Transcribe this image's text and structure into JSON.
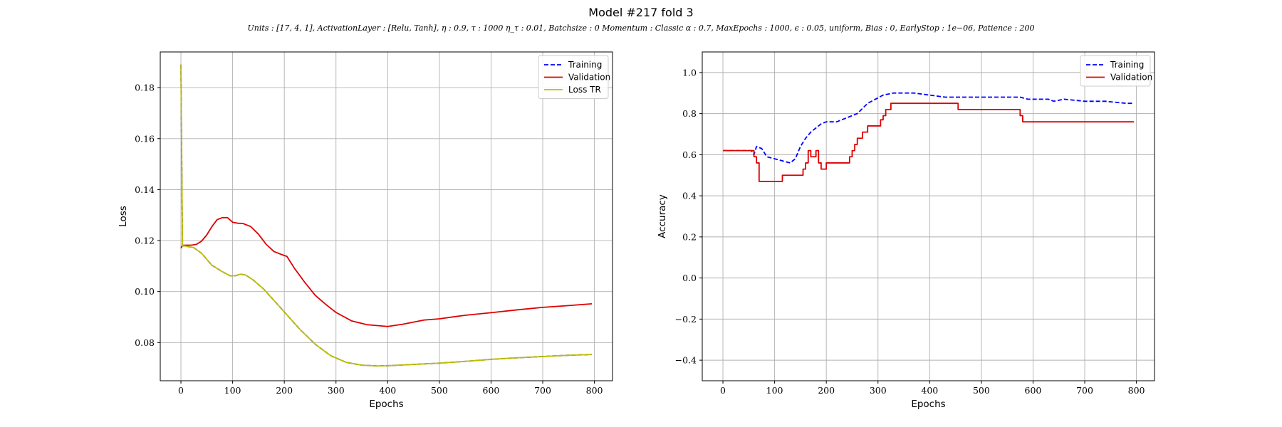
{
  "figure": {
    "title": "Model #217 fold 3",
    "subtitle": "Units : [17, 4, 1], ActivationLayer : [Relu, Tanh], η : 0.9, τ : 1000 η_τ : 0.01, Batchsize : 0 Momentum : Classic α : 0.7, MaxEpochs : 1000, ϵ : 0.05, uniform, Bias : 0, EarlyStop : 1e−06, Patience : 200"
  },
  "colors": {
    "training": "#0000ff",
    "validation": "#dd0000",
    "loss_tr": "#bfbf00",
    "grid": "#b0b0b0"
  },
  "chart_data": [
    {
      "type": "line",
      "xlabel": "Epochs",
      "ylabel": "Loss",
      "xlim": [
        -40,
        835
      ],
      "ylim": [
        0.065,
        0.194
      ],
      "xticks": [
        0,
        100,
        200,
        300,
        400,
        500,
        600,
        700,
        800
      ],
      "xtick_labels": [
        "0",
        "100",
        "200",
        "300",
        "400",
        "500",
        "600",
        "700",
        "800"
      ],
      "yticks": [
        0.08,
        0.1,
        0.12,
        0.14,
        0.16,
        0.18
      ],
      "ytick_labels": [
        "0.08",
        "0.10",
        "0.12",
        "0.14",
        "0.16",
        "0.18"
      ],
      "grid": true,
      "legend_position": "top-right",
      "legend": [
        "Training",
        "Validation",
        "Loss TR"
      ],
      "series": [
        {
          "name": "Validation",
          "style": "solid",
          "color_key": "validation",
          "points": [
            [
              0,
              0.117
            ],
            [
              3,
              0.1181
            ],
            [
              10,
              0.1182
            ],
            [
              20,
              0.1182
            ],
            [
              30,
              0.1185
            ],
            [
              40,
              0.1198
            ],
            [
              50,
              0.1222
            ],
            [
              60,
              0.1255
            ],
            [
              70,
              0.1282
            ],
            [
              80,
              0.129
            ],
            [
              90,
              0.129
            ],
            [
              100,
              0.1272
            ],
            [
              110,
              0.1268
            ],
            [
              120,
              0.1267
            ],
            [
              135,
              0.1255
            ],
            [
              150,
              0.1225
            ],
            [
              165,
              0.1185
            ],
            [
              180,
              0.1157
            ],
            [
              195,
              0.1145
            ],
            [
              205,
              0.1138
            ],
            [
              220,
              0.109
            ],
            [
              240,
              0.1035
            ],
            [
              260,
              0.0985
            ],
            [
              280,
              0.095
            ],
            [
              300,
              0.0918
            ],
            [
              330,
              0.0885
            ],
            [
              360,
              0.087
            ],
            [
              400,
              0.0863
            ],
            [
              430,
              0.0872
            ],
            [
              470,
              0.0888
            ],
            [
              500,
              0.0893
            ],
            [
              550,
              0.0907
            ],
            [
              600,
              0.0917
            ],
            [
              650,
              0.0928
            ],
            [
              700,
              0.0938
            ],
            [
              750,
              0.0945
            ],
            [
              795,
              0.0952
            ]
          ]
        },
        {
          "name": "Training",
          "style": "dashed",
          "color_key": "training",
          "points": [
            [
              0,
              0.189
            ],
            [
              3,
              0.118
            ],
            [
              10,
              0.1178
            ],
            [
              25,
              0.1172
            ],
            [
              40,
              0.115
            ],
            [
              60,
              0.1103
            ],
            [
              80,
              0.1078
            ],
            [
              95,
              0.1062
            ],
            [
              105,
              0.1062
            ],
            [
              115,
              0.1068
            ],
            [
              125,
              0.1065
            ],
            [
              140,
              0.1045
            ],
            [
              160,
              0.101
            ],
            [
              180,
              0.0965
            ],
            [
              200,
              0.092
            ],
            [
              230,
              0.0852
            ],
            [
              260,
              0.0793
            ],
            [
              290,
              0.0748
            ],
            [
              320,
              0.0722
            ],
            [
              350,
              0.0711
            ],
            [
              380,
              0.0708
            ],
            [
              400,
              0.0709
            ],
            [
              450,
              0.0714
            ],
            [
              500,
              0.0719
            ],
            [
              550,
              0.0726
            ],
            [
              600,
              0.0734
            ],
            [
              650,
              0.074
            ],
            [
              700,
              0.0745
            ],
            [
              750,
              0.075
            ],
            [
              795,
              0.0753
            ]
          ]
        },
        {
          "name": "Loss TR",
          "style": "solid",
          "color_key": "loss_tr",
          "points": [
            [
              0,
              0.189
            ],
            [
              3,
              0.118
            ],
            [
              10,
              0.1178
            ],
            [
              25,
              0.1172
            ],
            [
              40,
              0.115
            ],
            [
              60,
              0.1103
            ],
            [
              80,
              0.1078
            ],
            [
              95,
              0.1062
            ],
            [
              105,
              0.1062
            ],
            [
              115,
              0.1068
            ],
            [
              125,
              0.1065
            ],
            [
              140,
              0.1045
            ],
            [
              160,
              0.101
            ],
            [
              180,
              0.0965
            ],
            [
              200,
              0.092
            ],
            [
              230,
              0.0852
            ],
            [
              260,
              0.0793
            ],
            [
              290,
              0.0748
            ],
            [
              320,
              0.0722
            ],
            [
              350,
              0.0711
            ],
            [
              380,
              0.0708
            ],
            [
              400,
              0.0709
            ],
            [
              450,
              0.0714
            ],
            [
              500,
              0.0719
            ],
            [
              550,
              0.0726
            ],
            [
              600,
              0.0734
            ],
            [
              650,
              0.074
            ],
            [
              700,
              0.0745
            ],
            [
              750,
              0.075
            ],
            [
              795,
              0.0753
            ]
          ]
        }
      ]
    },
    {
      "type": "line",
      "xlabel": "Epochs",
      "ylabel": "Accuracy",
      "xlim": [
        -40,
        835
      ],
      "ylim": [
        -0.5,
        1.1
      ],
      "xticks": [
        0,
        100,
        200,
        300,
        400,
        500,
        600,
        700,
        800
      ],
      "xtick_labels": [
        "0",
        "100",
        "200",
        "300",
        "400",
        "500",
        "600",
        "700",
        "800"
      ],
      "yticks": [
        -0.4,
        -0.2,
        0.0,
        0.2,
        0.4,
        0.6,
        0.8,
        1.0
      ],
      "ytick_labels": [
        "−0.4",
        "−0.2",
        "0.0",
        "0.2",
        "0.4",
        "0.6",
        "0.8",
        "1.0"
      ],
      "grid": true,
      "legend_position": "top-right",
      "legend": [
        "Training",
        "Validation"
      ],
      "series": [
        {
          "name": "Training",
          "style": "dashed",
          "color_key": "training",
          "points": [
            [
              0,
              0.62
            ],
            [
              55,
              0.62
            ],
            [
              60,
              0.6
            ],
            [
              65,
              0.64
            ],
            [
              75,
              0.63
            ],
            [
              85,
              0.59
            ],
            [
              100,
              0.58
            ],
            [
              115,
              0.57
            ],
            [
              130,
              0.56
            ],
            [
              140,
              0.58
            ],
            [
              150,
              0.64
            ],
            [
              160,
              0.68
            ],
            [
              170,
              0.71
            ],
            [
              180,
              0.73
            ],
            [
              190,
              0.75
            ],
            [
              200,
              0.76
            ],
            [
              220,
              0.76
            ],
            [
              240,
              0.78
            ],
            [
              260,
              0.8
            ],
            [
              280,
              0.85
            ],
            [
              295,
              0.87
            ],
            [
              310,
              0.89
            ],
            [
              330,
              0.9
            ],
            [
              370,
              0.9
            ],
            [
              400,
              0.89
            ],
            [
              430,
              0.88
            ],
            [
              460,
              0.88
            ],
            [
              490,
              0.88
            ],
            [
              520,
              0.88
            ],
            [
              575,
              0.88
            ],
            [
              590,
              0.87
            ],
            [
              630,
              0.87
            ],
            [
              640,
              0.86
            ],
            [
              660,
              0.87
            ],
            [
              700,
              0.86
            ],
            [
              740,
              0.86
            ],
            [
              780,
              0.85
            ],
            [
              795,
              0.85
            ]
          ]
        },
        {
          "name": "Validation",
          "style": "step",
          "color_key": "validation",
          "points": [
            [
              0,
              0.62
            ],
            [
              55,
              0.62
            ],
            [
              60,
              0.59
            ],
            [
              65,
              0.56
            ],
            [
              70,
              0.47
            ],
            [
              110,
              0.47
            ],
            [
              115,
              0.5
            ],
            [
              150,
              0.5
            ],
            [
              155,
              0.53
            ],
            [
              160,
              0.56
            ],
            [
              165,
              0.62
            ],
            [
              170,
              0.59
            ],
            [
              175,
              0.59
            ],
            [
              180,
              0.62
            ],
            [
              185,
              0.56
            ],
            [
              190,
              0.53
            ],
            [
              195,
              0.53
            ],
            [
              200,
              0.56
            ],
            [
              240,
              0.56
            ],
            [
              245,
              0.59
            ],
            [
              250,
              0.62
            ],
            [
              255,
              0.65
            ],
            [
              260,
              0.68
            ],
            [
              270,
              0.71
            ],
            [
              280,
              0.74
            ],
            [
              300,
              0.74
            ],
            [
              305,
              0.77
            ],
            [
              310,
              0.79
            ],
            [
              315,
              0.82
            ],
            [
              325,
              0.85
            ],
            [
              450,
              0.85
            ],
            [
              455,
              0.82
            ],
            [
              570,
              0.82
            ],
            [
              575,
              0.79
            ],
            [
              580,
              0.76
            ],
            [
              795,
              0.76
            ]
          ]
        }
      ]
    }
  ]
}
